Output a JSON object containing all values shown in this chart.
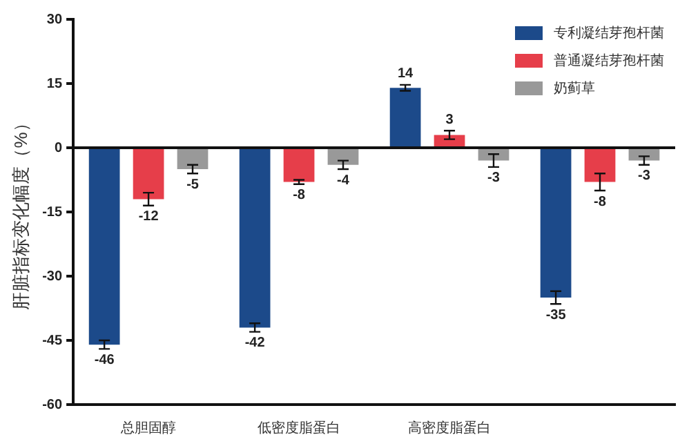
{
  "chart_data": {
    "type": "bar",
    "ylabel": "肝脏指标变化幅度（%）",
    "categories": [
      "总胆固醇",
      "低密度脂蛋白",
      "高密度脂蛋白",
      null
    ],
    "series": [
      {
        "name": "专利凝结芽孢杆菌",
        "color": "#1c4a8a",
        "values": [
          -46,
          -42,
          14,
          -35
        ],
        "errors": [
          1,
          1,
          0.7,
          1.5
        ]
      },
      {
        "name": "普通凝结芽孢杆菌",
        "color": "#e63e4a",
        "values": [
          -12,
          -8,
          3,
          -8
        ],
        "errors": [
          1.5,
          0.5,
          1,
          2
        ]
      },
      {
        "name": "奶蓟草",
        "color": "#999999",
        "values": [
          -5,
          -4,
          -3,
          -3
        ],
        "errors": [
          1,
          1,
          1.5,
          1
        ]
      }
    ],
    "ylim": [
      -60,
      30
    ],
    "yticks": [
      -60,
      -45,
      -30,
      -15,
      0,
      15,
      30
    ],
    "grid": false,
    "ref_lines": [
      {
        "axis": "y",
        "value": 0,
        "color": "#111111"
      }
    ],
    "legend": "top right",
    "data_labels": true
  }
}
